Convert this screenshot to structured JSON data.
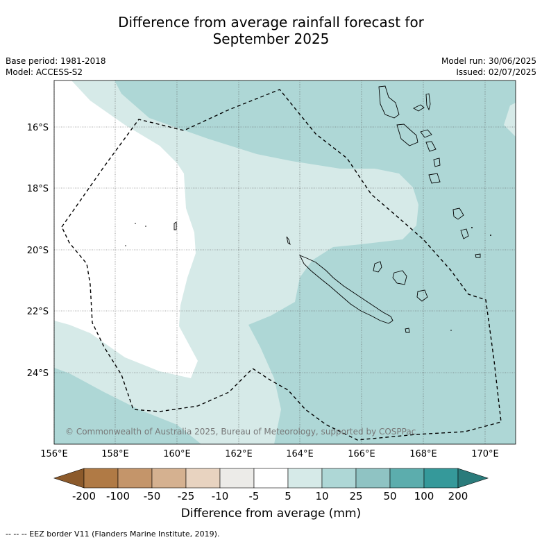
{
  "title_line1": "Difference from average rainfall forecast for",
  "title_line2": "September 2025",
  "meta_left": [
    "Base period: 1981-2018",
    "Model: ACCESS-S2"
  ],
  "meta_right": [
    "Model run: 30/06/2025",
    "Issued: 02/07/2025"
  ],
  "lat_ticks": [
    "16°S",
    "18°S",
    "20°S",
    "22°S",
    "24°S"
  ],
  "lon_ticks": [
    "156°E",
    "158°E",
    "160°E",
    "162°E",
    "164°E",
    "166°E",
    "168°E",
    "170°E"
  ],
  "copyright": "© Commonwealth of Australia 2025, Bureau of Meteorology, supported by COSPPac",
  "colorbar": {
    "labels": [
      "-200",
      "-100",
      "-50",
      "-25",
      "-10",
      "-5",
      "5",
      "10",
      "25",
      "50",
      "100",
      "200"
    ],
    "colors": [
      "#8c5a2b",
      "#b07a45",
      "#c4956a",
      "#d5b190",
      "#e8d3c0",
      "#ecebe8",
      "#ffffff",
      "#d6eae8",
      "#aed7d6",
      "#8fc3c3",
      "#5cadad",
      "#35999a",
      "#2a7b7b"
    ],
    "title": "Difference from average (mm)"
  },
  "footnote": "-- -- -- EEZ border V11 (Flanders Marine Institute, 2019).",
  "map_colors": {
    "light_teal": "#d6eae8",
    "mid_teal": "#aed7d6",
    "white": "#ffffff"
  }
}
